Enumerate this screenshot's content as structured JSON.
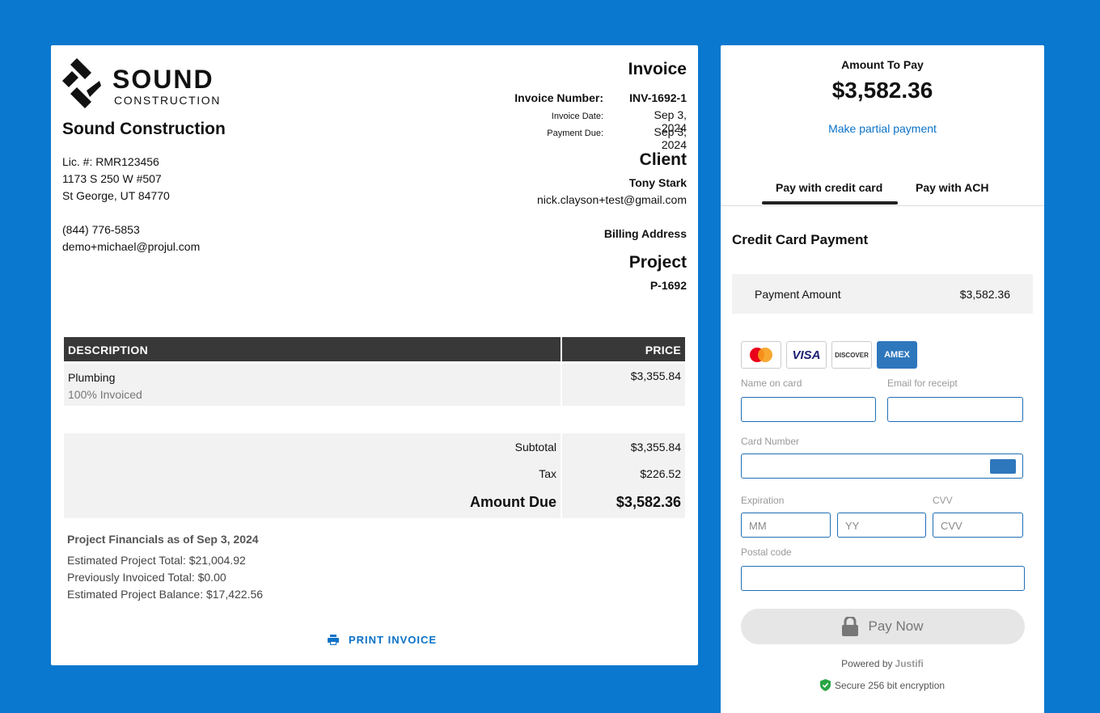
{
  "invoice": {
    "logo": {
      "line1": "SOUND",
      "line2": "CONSTRUCTION"
    },
    "company_name": "Sound Construction",
    "license": "Lic. #: RMR123456",
    "address1": "1173 S 250 W #507",
    "address2": "St George, UT 84770",
    "phone": "(844) 776-5853",
    "email": "demo+michael@projul.com",
    "heading": "Invoice",
    "number_label": "Invoice Number:",
    "number": "INV-1692-1",
    "date_label": "Invoice Date:",
    "date": "Sep 3, 2024",
    "due_label": "Payment Due:",
    "due": "Sep 3, 2024",
    "client_heading": "Client",
    "client_name": "Tony Stark",
    "client_email": "nick.clayson+test@gmail.com",
    "billing_label": "Billing Address",
    "project_heading": "Project",
    "project_id": "P-1692",
    "table": {
      "col_description": "DESCRIPTION",
      "col_price": "PRICE",
      "rows": [
        {
          "description": "Plumbing",
          "sub": "100% Invoiced",
          "price": "$3,355.84"
        }
      ]
    },
    "totals": {
      "subtotal_label": "Subtotal",
      "subtotal": "$3,355.84",
      "tax_label": "Tax",
      "tax": "$226.52",
      "due_label": "Amount Due",
      "due": "$3,582.36"
    },
    "financials": {
      "title": "Project Financials as of Sep 3, 2024",
      "estimated_total": "Estimated Project Total: $21,004.92",
      "previously_invoiced": "Previously Invoiced Total: $0.00",
      "balance": "Estimated Project Balance: $17,422.56"
    },
    "print_label": "PRINT INVOICE"
  },
  "payment": {
    "amount_label": "Amount To Pay",
    "amount": "$3,582.36",
    "partial_link": "Make partial payment",
    "tabs": [
      "Pay with credit card",
      "Pay with ACH"
    ],
    "active_tab": 0,
    "cc_title": "Credit Card Payment",
    "payment_amount_label": "Payment Amount",
    "payment_amount": "$3,582.36",
    "cards": [
      "mastercard-icon",
      "VISA",
      "DISCOVER",
      "AMEX"
    ],
    "name_label": "Name on card",
    "email_label": "Email for receipt",
    "card_number_label": "Card Number",
    "expiration_label": "Expiration",
    "cvv_label": "CVV",
    "mm_placeholder": "MM",
    "yy_placeholder": "YY",
    "cvv_placeholder": "CVV",
    "postal_label": "Postal code",
    "pay_button": "Pay Now",
    "powered_by": "Powered by",
    "powered_brand": "Justifi",
    "secure_text": "Secure 256 bit encryption"
  }
}
